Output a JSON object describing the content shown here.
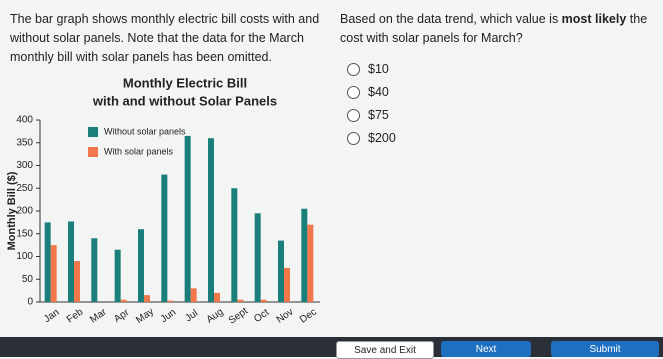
{
  "intro": "The bar graph shows monthly electric bill costs with and without solar panels. Note that the data for the March monthly bill with solar panels has been omitted.",
  "question": [
    "Based on the data trend, which value is ",
    "most likely",
    " the cost with solar panels for March?"
  ],
  "options": [
    "$10",
    "$40",
    "$75",
    "$200"
  ],
  "buttons": [
    "Save and Exit",
    "Next",
    "Submit"
  ],
  "chart_data": {
    "type": "bar",
    "title": [
      "Monthly Electric Bill",
      "with and without Solar Panels"
    ],
    "y_label": "Monthly Bill ($)",
    "categories": [
      "Jan",
      "Feb",
      "Mar",
      "Apr",
      "May",
      "Jun",
      "Jul",
      "Aug",
      "Sept",
      "Oct",
      "Nov",
      "Dec"
    ],
    "series": [
      {
        "name": "Without solar panels",
        "color": "#1a7f7a",
        "values": [
          175,
          177,
          140,
          115,
          160,
          280,
          365,
          360,
          250,
          195,
          135,
          205
        ]
      },
      {
        "name": "With solar panels",
        "color": "#f2774a",
        "values": [
          125,
          90,
          null,
          5,
          15,
          3,
          30,
          20,
          5,
          5,
          75,
          170
        ]
      }
    ],
    "ylim": [
      0,
      400
    ],
    "yticks": [
      0,
      50,
      100,
      150,
      200,
      250,
      300,
      350,
      400
    ],
    "grid": false,
    "legend": "upper left"
  }
}
